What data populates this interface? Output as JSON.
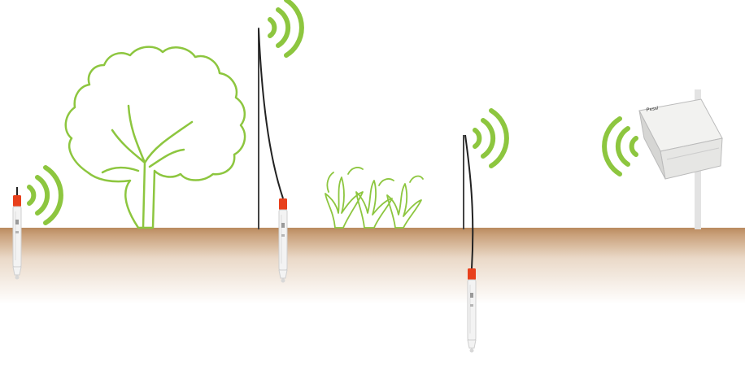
{
  "colors": {
    "background": "#ffffff",
    "soil_top": "#b98a5e",
    "soil_bottom": "#ffffff",
    "plant_outline": "#8dc63f",
    "signal": "#8dc63f",
    "pole": "#444444",
    "cable": "#222222",
    "sensor_cap": "#e8401c",
    "sensor_body": "#f3f3f3",
    "logger_box": "#e6e6e4",
    "mount_post": "#e3e3e3"
  },
  "icons": {
    "tree": "tree-outline-icon",
    "plants": "crop-plants-outline-icon",
    "signal": "wireless-signal-icon",
    "sensor": "soil-probe-icon",
    "logger": "data-logger-box-icon"
  },
  "logger": {
    "brand_label": "Pessl"
  }
}
